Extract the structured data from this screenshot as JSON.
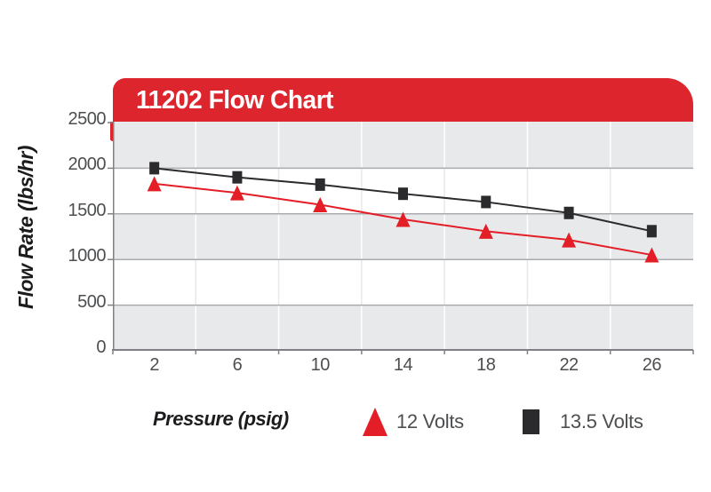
{
  "figure": {
    "title": "11202 Flow Chart",
    "x_axis_title": "Pressure (psig)",
    "y_axis_title": "Flow Rate (lbs/hr)"
  },
  "chart_data": {
    "type": "line",
    "title": "11202 Flow Chart",
    "xlabel": "Pressure (psig)",
    "ylabel": "Flow Rate (lbs/hr)",
    "x": [
      2,
      6,
      10,
      14,
      18,
      22,
      26
    ],
    "yticks": [
      0,
      500,
      1000,
      1500,
      2000,
      2500
    ],
    "ylim": [
      0,
      2500
    ],
    "grid": "horizontal gridlines every 500 with alternating gray/white bands; faint vertical lines at category boundaries",
    "legend_position": "bottom",
    "series": [
      {
        "name": "12 Volts",
        "marker": "triangle",
        "color": "#e31e26",
        "values": [
          1830,
          1730,
          1600,
          1440,
          1310,
          1215,
          1050
        ]
      },
      {
        "name": "13.5 Volts",
        "marker": "square",
        "color": "#2b2b2d",
        "values": [
          2000,
          1900,
          1820,
          1720,
          1630,
          1510,
          1310
        ]
      }
    ]
  },
  "colors": {
    "header_red": "#dc252c",
    "band_gray": "#e8e9eb",
    "band_white": "#ffffff",
    "vline_on_gray": "#ffffff",
    "vline_on_white": "#e9e9ea",
    "gridline": "#a9abae",
    "axis": "#7e8083",
    "tick_text": "#4c4e50",
    "series_red": "#e31e26",
    "series_black": "#2b2b2d"
  }
}
